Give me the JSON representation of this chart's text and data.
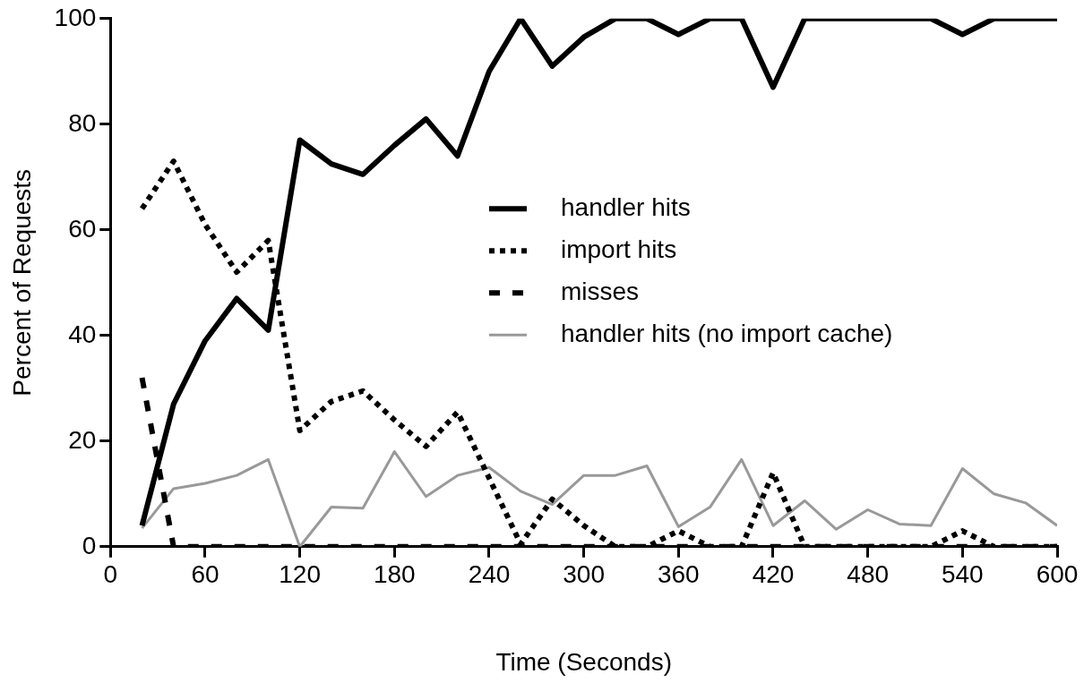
{
  "chart_data": {
    "type": "line",
    "xlabel": "Time (Seconds)",
    "ylabel": "Percent of Requests",
    "x": [
      20,
      40,
      60,
      80,
      100,
      120,
      140,
      160,
      180,
      200,
      220,
      240,
      260,
      280,
      300,
      320,
      340,
      360,
      380,
      400,
      420,
      440,
      460,
      480,
      500,
      520,
      540,
      560,
      580,
      600
    ],
    "xlim": [
      0,
      600
    ],
    "xticks": [
      0,
      60,
      120,
      180,
      240,
      300,
      360,
      420,
      480,
      540,
      600
    ],
    "ylim": [
      0,
      100
    ],
    "yticks": [
      0,
      20,
      40,
      60,
      80,
      100
    ],
    "grid": false,
    "legend": "right",
    "marker": "none",
    "series": [
      {
        "name": "handler hits",
        "color": "#000000",
        "line_style": "solid",
        "values": [
          4,
          27,
          39,
          47,
          41,
          77,
          72.5,
          70.5,
          76,
          81,
          74,
          90,
          100,
          91,
          96.5,
          100,
          100,
          97,
          100,
          100,
          87,
          100,
          100,
          100,
          100,
          100,
          97,
          100,
          100,
          100
        ]
      },
      {
        "name": "import hits",
        "color": "#000000",
        "line_style": "dotted",
        "values": [
          64,
          73,
          61,
          52,
          58,
          22,
          27.5,
          29.5,
          24,
          19,
          25.5,
          13,
          0.5,
          9,
          4,
          0,
          0,
          3,
          0,
          0,
          14,
          0,
          0,
          0,
          0,
          0,
          3,
          0,
          0,
          0
        ]
      },
      {
        "name": "misses",
        "color": "#000000",
        "line_style": "dashed",
        "values": [
          32,
          0,
          0,
          0,
          0,
          0,
          0,
          0,
          0,
          0,
          0,
          0,
          0,
          0,
          0,
          0,
          0,
          0,
          0,
          0,
          0,
          0,
          0,
          0,
          0,
          0,
          0,
          0,
          0,
          0
        ]
      },
      {
        "name": "handler hits (no import cache)",
        "color": "#999999",
        "line_style": "solid",
        "values": [
          3.5,
          11,
          12,
          13.5,
          16.5,
          0,
          7.5,
          7.3,
          18,
          9.5,
          13.5,
          15,
          10.5,
          8,
          13.5,
          13.5,
          15.3,
          3.8,
          7.5,
          16.5,
          4,
          8.7,
          3.3,
          7,
          4.3,
          4,
          14.8,
          10,
          8.3,
          4
        ]
      }
    ]
  }
}
